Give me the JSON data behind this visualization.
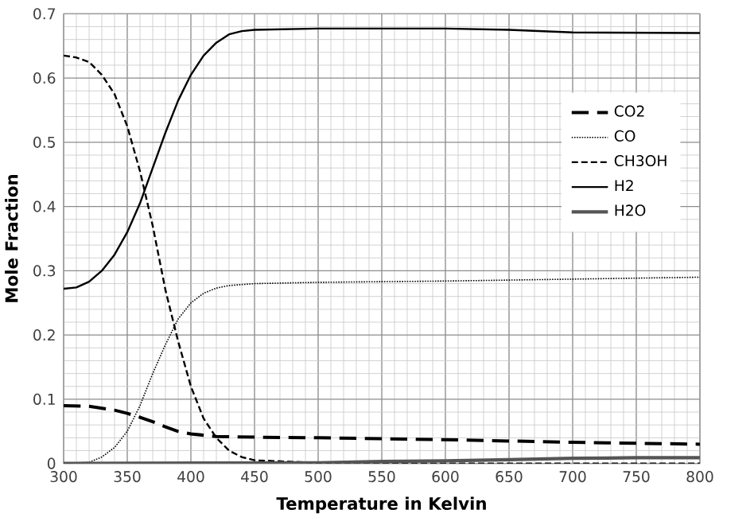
{
  "chart_data": {
    "type": "line",
    "xlabel": "Temperature in Kelvin",
    "ylabel": "Mole Fraction",
    "xlim": [
      300,
      800
    ],
    "ylim": [
      0,
      0.7
    ],
    "xticks": [
      300,
      350,
      400,
      450,
      500,
      550,
      600,
      650,
      700,
      750,
      800
    ],
    "yticks": [
      0,
      0.1,
      0.2,
      0.3,
      0.4,
      0.5,
      0.6,
      0.7
    ],
    "grid": true,
    "legend": "right",
    "marker": "none",
    "series": [
      {
        "name": "CO2",
        "color": "#000000",
        "line_style": "dashed",
        "x": [
          300,
          320,
          340,
          350,
          360,
          370,
          380,
          390,
          400,
          420,
          450,
          500,
          600,
          700,
          800
        ],
        "values": [
          0.09,
          0.089,
          0.083,
          0.078,
          0.072,
          0.065,
          0.057,
          0.05,
          0.046,
          0.042,
          0.041,
          0.04,
          0.037,
          0.033,
          0.03
        ]
      },
      {
        "name": "CO",
        "color": "#000000",
        "line_style": "dotted",
        "x": [
          300,
          320,
          330,
          340,
          350,
          360,
          370,
          380,
          390,
          400,
          410,
          420,
          430,
          450,
          500,
          600,
          700,
          800
        ],
        "values": [
          0,
          0.002,
          0.01,
          0.025,
          0.05,
          0.09,
          0.14,
          0.185,
          0.225,
          0.25,
          0.265,
          0.273,
          0.277,
          0.28,
          0.282,
          0.284,
          0.287,
          0.29
        ]
      },
      {
        "name": "CH3OH",
        "color": "#000000",
        "line_style": "dashed",
        "x": [
          300,
          310,
          320,
          330,
          340,
          350,
          360,
          370,
          380,
          390,
          400,
          410,
          420,
          430,
          440,
          450,
          500,
          550,
          800
        ],
        "values": [
          0.635,
          0.632,
          0.625,
          0.605,
          0.575,
          0.525,
          0.455,
          0.37,
          0.27,
          0.19,
          0.12,
          0.07,
          0.04,
          0.02,
          0.01,
          0.005,
          0.001,
          0,
          0
        ]
      },
      {
        "name": "H2",
        "color": "#000000",
        "line_style": "solid",
        "x": [
          300,
          310,
          320,
          330,
          340,
          350,
          360,
          370,
          380,
          390,
          400,
          410,
          420,
          430,
          440,
          450,
          500,
          600,
          650,
          700,
          800
        ],
        "values": [
          0.272,
          0.274,
          0.283,
          0.3,
          0.325,
          0.36,
          0.405,
          0.46,
          0.515,
          0.565,
          0.605,
          0.635,
          0.655,
          0.668,
          0.673,
          0.675,
          0.677,
          0.677,
          0.675,
          0.671,
          0.67
        ]
      },
      {
        "name": "H2O",
        "color": "#555555",
        "line_style": "solid",
        "x": [
          300,
          500,
          550,
          600,
          650,
          700,
          750,
          800
        ],
        "values": [
          0,
          0.001,
          0.003,
          0.004,
          0.006,
          0.008,
          0.009,
          0.009
        ]
      }
    ]
  }
}
